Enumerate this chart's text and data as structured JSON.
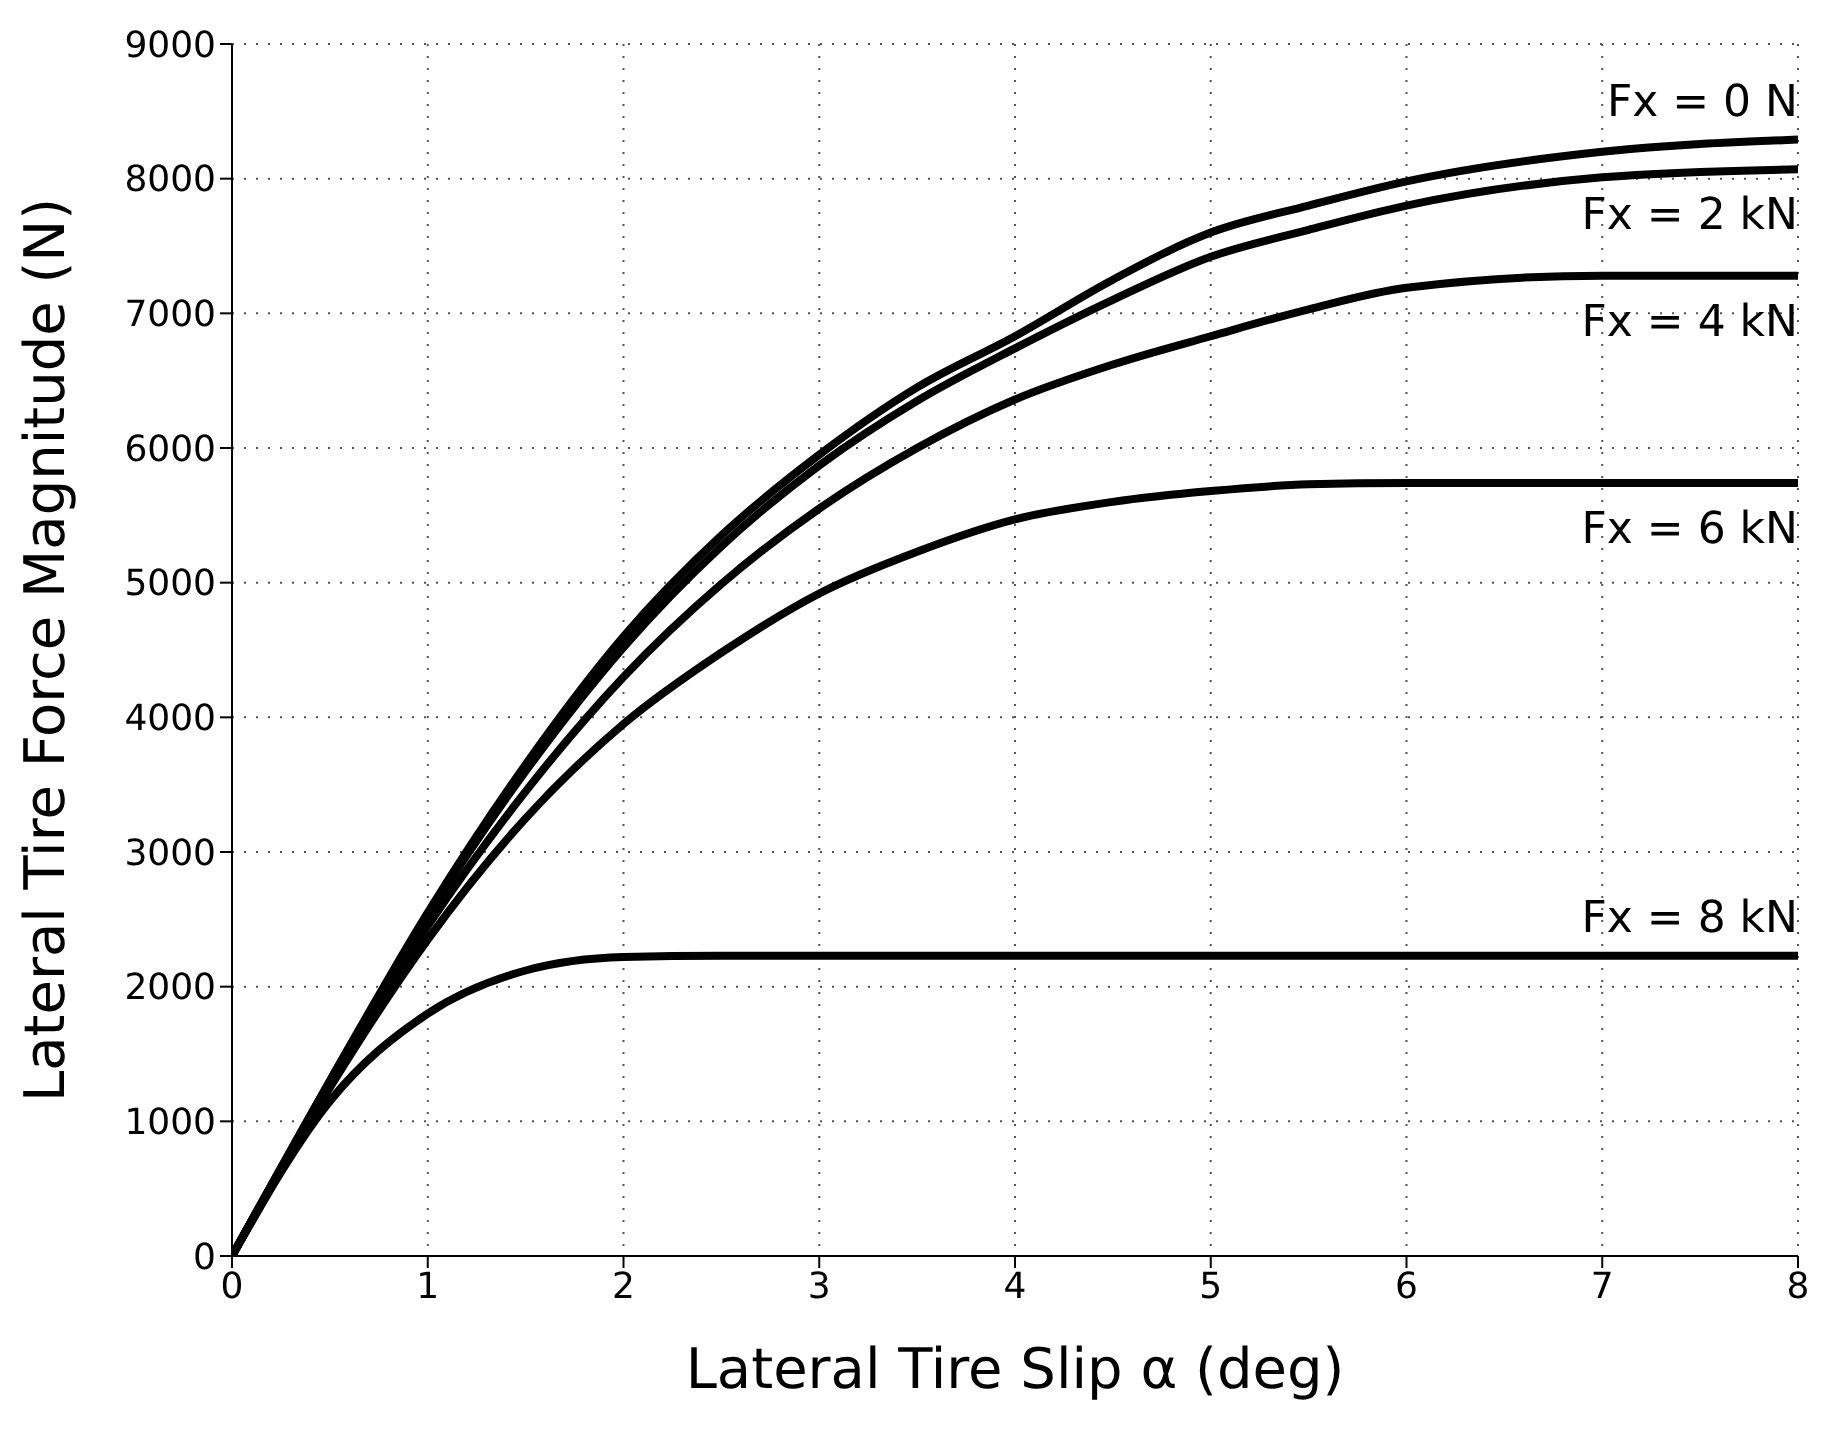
{
  "chart_data": {
    "type": "line",
    "xlabel": "Lateral Tire Slip α (deg)",
    "ylabel": "Lateral Tire Force Magnitude (N)",
    "xlim": [
      0,
      8
    ],
    "xticks": [
      0,
      1,
      2,
      3,
      4,
      5,
      6,
      7,
      8
    ],
    "ylim": [
      0,
      9000
    ],
    "yticks": [
      0,
      1000,
      2000,
      3000,
      4000,
      5000,
      6000,
      7000,
      8000,
      9000
    ],
    "grid": true,
    "legend": false,
    "marker": "none",
    "line_style": "solid",
    "series": [
      {
        "name": "Fx = 0 N",
        "color": "#000000",
        "x": [
          0,
          0.5,
          1,
          1.5,
          2,
          2.5,
          3,
          3.5,
          4,
          4.5,
          5,
          5.5,
          6,
          7,
          8
        ],
        "values": [
          0,
          1300,
          2550,
          3650,
          4600,
          5350,
          5950,
          6450,
          6830,
          7250,
          7600,
          7800,
          7980,
          8200,
          8290
        ]
      },
      {
        "name": "Fx = 2 kN",
        "color": "#000000",
        "x": [
          0,
          0.5,
          1,
          1.5,
          2,
          2.5,
          3,
          3.5,
          4,
          4.5,
          5,
          5.5,
          6,
          7,
          8
        ],
        "values": [
          0,
          1300,
          2530,
          3600,
          4520,
          5270,
          5870,
          6350,
          6740,
          7100,
          7420,
          7620,
          7800,
          8010,
          8070
        ]
      },
      {
        "name": "Fx = 4 kN",
        "color": "#000000",
        "x": [
          0,
          0.5,
          1,
          1.5,
          2,
          2.5,
          3,
          3.5,
          4,
          4.5,
          5,
          5.5,
          6,
          7,
          8
        ],
        "values": [
          0,
          1280,
          2450,
          3450,
          4300,
          4990,
          5550,
          6000,
          6360,
          6620,
          6830,
          7030,
          7190,
          7280,
          7280
        ]
      },
      {
        "name": "Fx = 6 kN",
        "color": "#000000",
        "x": [
          0,
          0.5,
          1,
          1.5,
          2,
          2.5,
          3,
          3.5,
          4,
          4.5,
          5,
          5.5,
          6,
          7,
          8
        ],
        "values": [
          0,
          1250,
          2350,
          3250,
          3950,
          4480,
          4920,
          5230,
          5470,
          5600,
          5680,
          5730,
          5740,
          5740,
          5740
        ]
      },
      {
        "name": "Fx = 8 kN",
        "color": "#000000",
        "x": [
          0,
          0.5,
          1,
          1.5,
          2,
          2.5,
          3,
          4,
          5,
          6,
          7,
          8
        ],
        "values": [
          0,
          1150,
          1800,
          2120,
          2220,
          2230,
          2230,
          2230,
          2230,
          2230,
          2230,
          2230
        ]
      }
    ]
  }
}
